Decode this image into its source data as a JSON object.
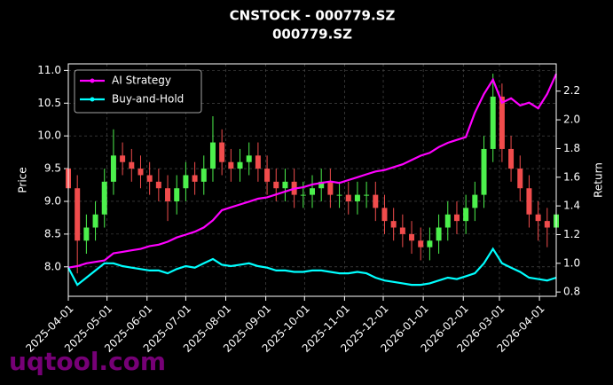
{
  "chart_data": {
    "type": "candlestick",
    "title": "CNSTOCK - 000779.SZ",
    "subtitle": "000779.SZ",
    "ylabel": "Price",
    "y2label": "Return",
    "watermark": "uqtool.com",
    "up_color": "#4cf04c",
    "down_color": "#f04c4c",
    "x": [
      "2025-04-01",
      "2025-04-08",
      "2025-04-15",
      "2025-04-22",
      "2025-04-29",
      "2025-05-06",
      "2025-05-13",
      "2025-05-20",
      "2025-05-27",
      "2025-06-03",
      "2025-06-10",
      "2025-06-17",
      "2025-06-24",
      "2025-07-01",
      "2025-07-08",
      "2025-07-15",
      "2025-07-22",
      "2025-07-29",
      "2025-08-05",
      "2025-08-12",
      "2025-08-19",
      "2025-08-26",
      "2025-09-02",
      "2025-09-09",
      "2025-09-16",
      "2025-09-23",
      "2025-09-30",
      "2025-10-07",
      "2025-10-14",
      "2025-10-21",
      "2025-10-28",
      "2025-11-04",
      "2025-11-11",
      "2025-11-18",
      "2025-11-25",
      "2025-12-02",
      "2025-12-09",
      "2025-12-16",
      "2025-12-23",
      "2025-12-30",
      "2026-01-06",
      "2026-01-13",
      "2026-01-20",
      "2026-01-27",
      "2026-02-03",
      "2026-02-10",
      "2026-02-17",
      "2026-02-24",
      "2026-03-03",
      "2026-03-10",
      "2026-03-17",
      "2026-03-24",
      "2026-03-31",
      "2026-04-07",
      "2026-04-14"
    ],
    "open": [
      9.5,
      9.2,
      8.4,
      8.6,
      8.8,
      9.3,
      9.7,
      9.6,
      9.5,
      9.4,
      9.3,
      9.2,
      9.0,
      9.2,
      9.4,
      9.3,
      9.5,
      9.9,
      9.6,
      9.5,
      9.6,
      9.7,
      9.5,
      9.3,
      9.2,
      9.3,
      9.1,
      9.1,
      9.2,
      9.3,
      9.1,
      9.1,
      9.0,
      9.1,
      9.1,
      8.9,
      8.7,
      8.6,
      8.5,
      8.4,
      8.3,
      8.4,
      8.6,
      8.8,
      8.7,
      8.9,
      9.1,
      9.8,
      10.6,
      9.8,
      9.5,
      9.2,
      8.8,
      8.7,
      8.6
    ],
    "high": [
      9.7,
      9.4,
      8.8,
      9.0,
      9.5,
      10.1,
      9.9,
      9.8,
      9.7,
      9.6,
      9.5,
      9.4,
      9.4,
      9.6,
      9.6,
      9.7,
      10.3,
      10.1,
      9.8,
      9.8,
      9.9,
      9.9,
      9.7,
      9.5,
      9.5,
      9.5,
      9.3,
      9.4,
      9.5,
      9.5,
      9.3,
      9.3,
      9.3,
      9.3,
      9.3,
      9.1,
      8.9,
      8.8,
      8.7,
      8.6,
      8.6,
      8.8,
      9.0,
      9.0,
      9.1,
      9.3,
      10.0,
      10.95,
      10.8,
      10.0,
      9.7,
      9.4,
      9.0,
      8.9,
      9.0
    ],
    "low": [
      9.0,
      7.9,
      8.2,
      8.4,
      8.6,
      9.1,
      9.4,
      9.3,
      9.2,
      9.1,
      9.0,
      8.7,
      8.8,
      9.0,
      9.1,
      9.1,
      9.3,
      9.4,
      9.3,
      9.3,
      9.4,
      9.3,
      9.1,
      9.0,
      9.0,
      8.9,
      8.9,
      8.9,
      9.0,
      8.9,
      8.9,
      8.8,
      8.8,
      8.9,
      8.7,
      8.5,
      8.4,
      8.3,
      8.2,
      8.1,
      8.1,
      8.2,
      8.4,
      8.5,
      8.5,
      8.7,
      8.9,
      9.6,
      9.6,
      9.3,
      9.0,
      8.6,
      8.4,
      8.3,
      8.4
    ],
    "close": [
      9.2,
      8.4,
      8.6,
      8.8,
      9.3,
      9.7,
      9.6,
      9.5,
      9.4,
      9.3,
      9.2,
      9.0,
      9.2,
      9.4,
      9.3,
      9.5,
      9.9,
      9.6,
      9.5,
      9.6,
      9.7,
      9.5,
      9.3,
      9.2,
      9.3,
      9.1,
      9.1,
      9.2,
      9.3,
      9.1,
      9.1,
      9.0,
      9.1,
      9.1,
      8.9,
      8.7,
      8.6,
      8.5,
      8.4,
      8.3,
      8.4,
      8.6,
      8.8,
      8.7,
      8.9,
      9.1,
      9.8,
      10.6,
      9.8,
      9.5,
      9.2,
      8.8,
      8.7,
      8.6,
      8.8
    ],
    "series": [
      {
        "name": "AI Strategy",
        "color": "#ff00ff",
        "axis": "y2",
        "values": [
          0.97,
          0.98,
          1.0,
          1.01,
          1.02,
          1.07,
          1.08,
          1.09,
          1.1,
          1.12,
          1.13,
          1.15,
          1.18,
          1.2,
          1.22,
          1.25,
          1.3,
          1.37,
          1.39,
          1.41,
          1.43,
          1.45,
          1.46,
          1.48,
          1.5,
          1.52,
          1.53,
          1.55,
          1.56,
          1.57,
          1.56,
          1.58,
          1.6,
          1.62,
          1.64,
          1.65,
          1.67,
          1.69,
          1.72,
          1.75,
          1.77,
          1.81,
          1.84,
          1.86,
          1.88,
          2.05,
          2.18,
          2.28,
          2.12,
          2.15,
          2.1,
          2.12,
          2.08,
          2.18,
          2.32
        ]
      },
      {
        "name": "Buy-and-Hold",
        "color": "#00ffff",
        "axis": "y2",
        "values": [
          0.97,
          0.85,
          0.9,
          0.95,
          1.0,
          1.0,
          0.98,
          0.97,
          0.96,
          0.95,
          0.95,
          0.93,
          0.96,
          0.98,
          0.97,
          1.0,
          1.03,
          0.99,
          0.98,
          0.99,
          1.0,
          0.98,
          0.97,
          0.95,
          0.95,
          0.94,
          0.94,
          0.95,
          0.95,
          0.94,
          0.93,
          0.93,
          0.94,
          0.93,
          0.9,
          0.88,
          0.87,
          0.86,
          0.85,
          0.85,
          0.86,
          0.88,
          0.9,
          0.89,
          0.91,
          0.93,
          1.0,
          1.1,
          1.0,
          0.97,
          0.94,
          0.9,
          0.89,
          0.88,
          0.9
        ]
      }
    ],
    "xlim": [
      "2025-04-01",
      "2026-04-14"
    ],
    "xticks": [
      "2025-04-01",
      "2025-05-01",
      "2025-06-01",
      "2025-07-01",
      "2025-08-01",
      "2025-09-01",
      "2025-10-01",
      "2025-11-01",
      "2025-12-01",
      "2026-01-01",
      "2026-02-01",
      "2026-03-01",
      "2026-04-01"
    ],
    "ylim": [
      7.55,
      11.1
    ],
    "yticks": [
      {
        "value": 8,
        "label": "8.0"
      },
      8.5,
      {
        "value": 9,
        "label": "9.0"
      },
      9.5,
      {
        "value": 10,
        "label": "10.0"
      },
      10.5,
      {
        "value": 11,
        "label": "11.0"
      }
    ],
    "y2lim": [
      0.77,
      2.39
    ],
    "y2ticks": [
      0.8,
      {
        "value": 1,
        "label": "1.0"
      },
      1.2,
      1.4,
      1.6,
      1.8,
      {
        "value": 2,
        "label": "2.0"
      },
      2.2
    ],
    "grid": true,
    "legend": "upper left"
  }
}
